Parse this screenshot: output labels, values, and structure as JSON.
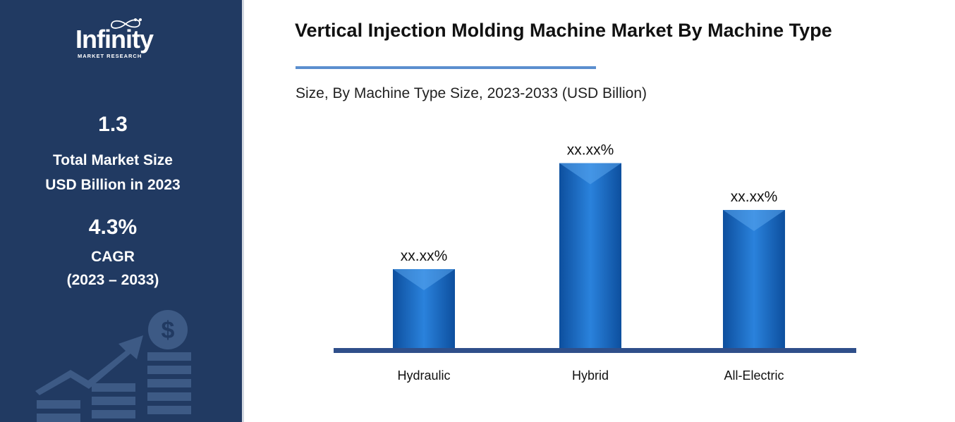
{
  "brand": {
    "logo_word": "Infinity",
    "logo_sub": "MARKET RESEARCH"
  },
  "sidebar": {
    "market_size_value": "1.3",
    "market_size_label_1": "Total Market Size",
    "market_size_label_2": "USD Billion in 2023",
    "cagr_value": "4.3%",
    "cagr_label": "CAGR",
    "cagr_period": "(2023 – 2033)",
    "background_color": "#213a62",
    "decoration_icons": [
      "growth-arrow-icon",
      "dollar-coin-icon",
      "bar-stack-icon"
    ]
  },
  "header": {
    "title": "Vertical Injection Molding Machine Market By Machine Type",
    "subtitle": "Size, By Machine Type Size, 2023-2033 (USD Billion)",
    "rule_color": "#5b8fcf"
  },
  "chart_data": {
    "type": "bar",
    "categories": [
      "Hydraulic",
      "Hybrid",
      "All-Electric"
    ],
    "values": [
      0.32,
      0.75,
      0.56
    ],
    "data_labels": [
      "xx.xx%",
      "xx.xx%",
      "xx.xx%"
    ],
    "ylim": [
      0,
      1
    ],
    "grid": false,
    "bar_color": "#1565c0",
    "baseline_color": "#2f4f8a"
  }
}
